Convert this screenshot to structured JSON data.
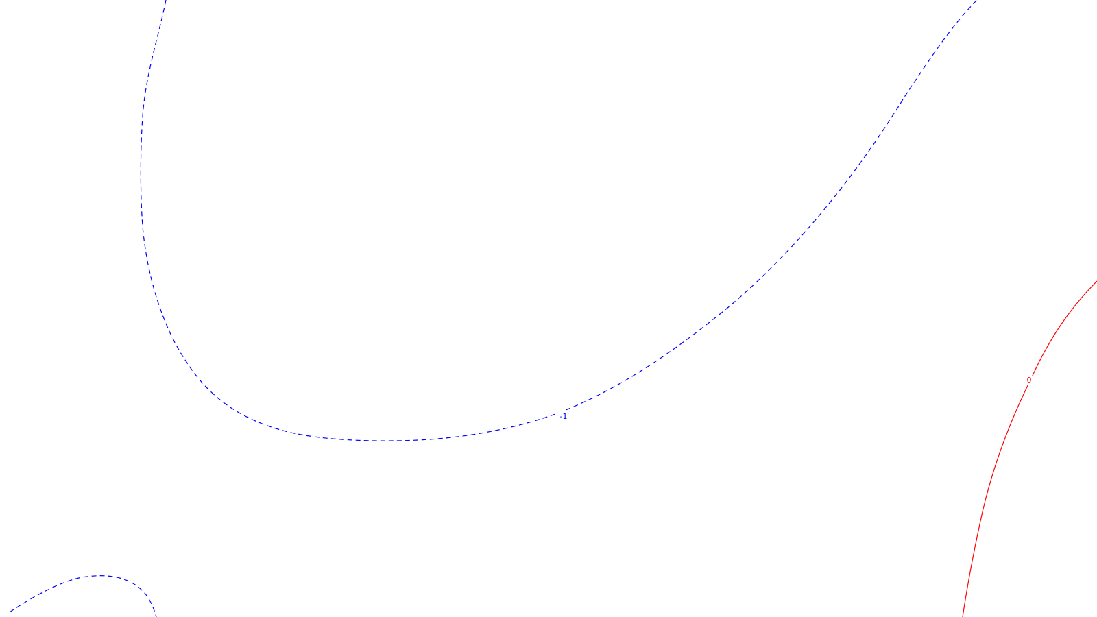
{
  "chart_data": {
    "type": "contour",
    "title": "",
    "xlabel": "",
    "ylabel": "",
    "grid": false,
    "series": [
      {
        "level_label": "-1",
        "color": "#0000ff",
        "style": "dashed",
        "segments": 2
      },
      {
        "level_label": "0",
        "color": "#ff0000",
        "style": "solid",
        "segments": 1
      }
    ]
  }
}
